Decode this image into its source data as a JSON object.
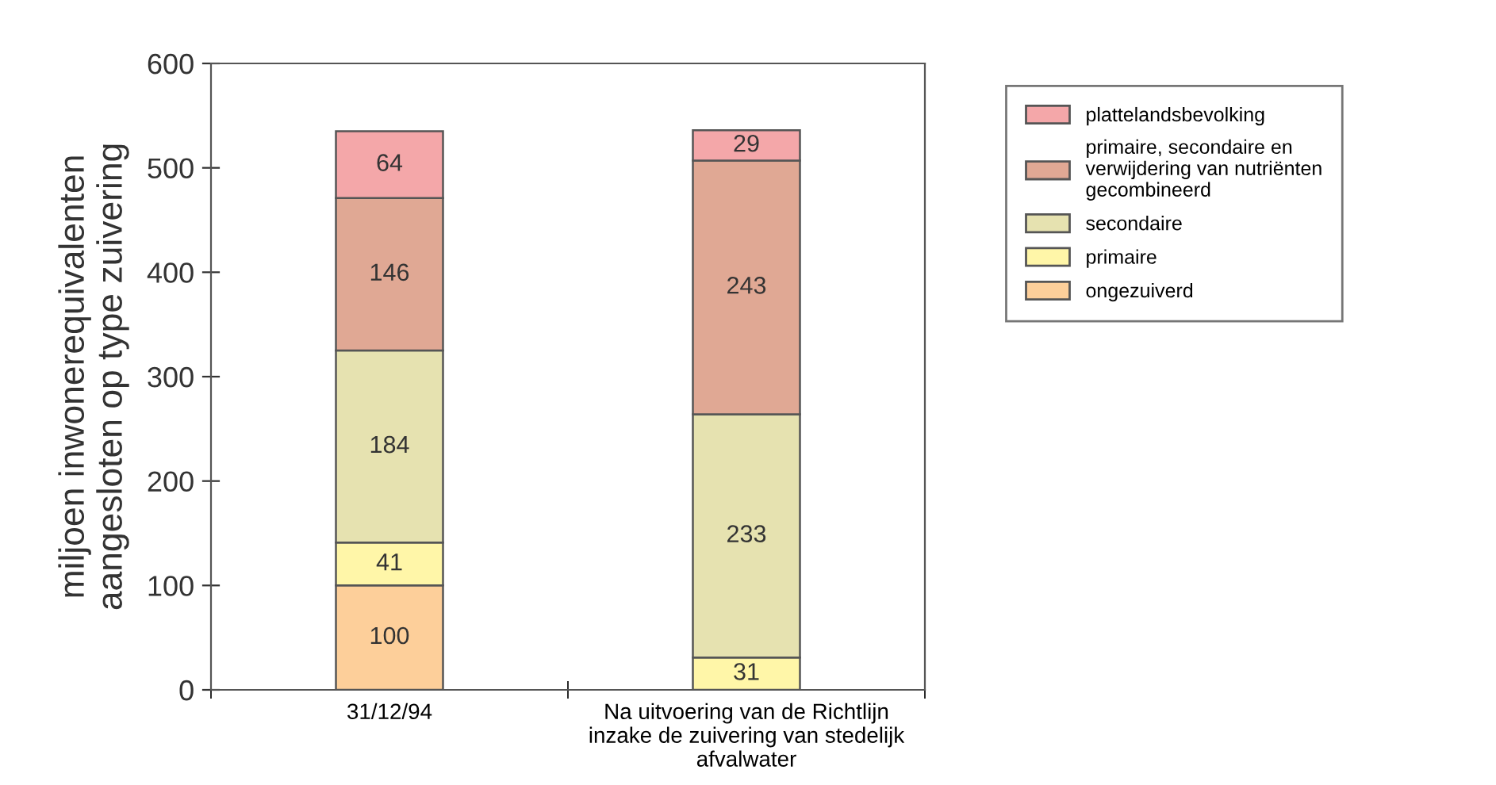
{
  "chart_data": {
    "type": "bar",
    "stacked": true,
    "ylabel": "miljoen inwonerequivalenten aangesloten op type zuivering",
    "categories": [
      "31/12/94",
      "Na uitvoering van de Richtlijn inzake de zuivering van stedelijk afvalwater"
    ],
    "series": [
      {
        "name": "ongezuiverd",
        "color": "#fdcf9a",
        "values": [
          100,
          null
        ]
      },
      {
        "name": "primaire",
        "color": "#fff6a8",
        "values": [
          41,
          31
        ]
      },
      {
        "name": "secondaire",
        "color": "#e6e2b0",
        "values": [
          184,
          233
        ]
      },
      {
        "name": "primaire, secondaire en verwijdering van nutriënten gecombineerd",
        "color": "#e0a894",
        "values": [
          146,
          243
        ]
      },
      {
        "name": "plattelandsbevolking",
        "color": "#f4a7a9",
        "values": [
          64,
          29
        ]
      }
    ],
    "ylim": [
      0,
      600
    ],
    "yticks": [
      0,
      100,
      200,
      300,
      400,
      500,
      600
    ],
    "data_labels": true,
    "grid": false,
    "legend": "top right"
  }
}
